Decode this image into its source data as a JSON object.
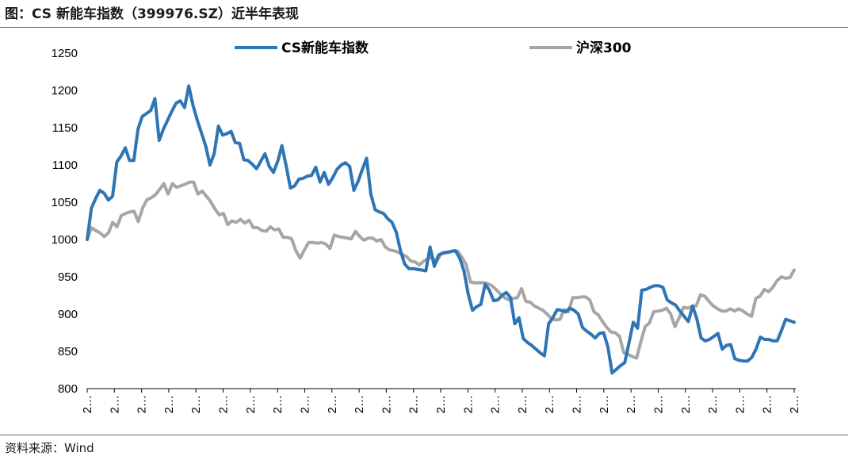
{
  "title": "图：CS 新能车指数（399976.SZ）近半年表现",
  "source": "资料来源：Wind",
  "colors": {
    "series_1": "#2e75b6",
    "series_2": "#a6a6a6",
    "axis": "#000000"
  },
  "chart_data": {
    "type": "line",
    "title": "",
    "xlabel": "",
    "ylabel": "",
    "ylim": [
      800,
      1250
    ],
    "yticks": [
      800,
      850,
      900,
      950,
      1000,
      1050,
      1100,
      1150,
      1200,
      1250
    ],
    "xtick_labels": [
      "2…",
      "2…",
      "2…",
      "2…",
      "2…",
      "2…",
      "2…",
      "2…",
      "2…",
      "2…",
      "2…",
      "2…",
      "2…",
      "2…",
      "2…",
      "2…",
      "2…",
      "2…",
      "2…",
      "2…",
      "2…",
      "2…",
      "2…",
      "2…",
      "2…",
      "2…",
      "2…"
    ],
    "legend": "top",
    "series": [
      {
        "name": "CS新能车指数",
        "values": [
          1000,
          1042,
          1055,
          1066,
          1062,
          1053,
          1058,
          1104,
          1112,
          1123,
          1106,
          1106,
          1148,
          1165,
          1169,
          1173,
          1189,
          1133,
          1148,
          1160,
          1172,
          1183,
          1186,
          1177,
          1206,
          1180,
          1160,
          1143,
          1125,
          1100,
          1115,
          1152,
          1140,
          1142,
          1145,
          1130,
          1129,
          1107,
          1106,
          1101,
          1095,
          1105,
          1115,
          1098,
          1090,
          1105,
          1126,
          1099,
          1069,
          1072,
          1081,
          1082,
          1085,
          1086,
          1097,
          1077,
          1090,
          1074,
          1083,
          1094,
          1100,
          1103,
          1098,
          1066,
          1078,
          1094,
          1109,
          1061,
          1040,
          1037,
          1035,
          1028,
          1023,
          1010,
          985,
          967,
          961,
          961,
          960,
          959,
          958,
          990,
          964,
          979,
          982,
          983,
          984,
          985,
          975,
          958,
          927,
          905,
          910,
          913,
          940,
          932,
          918,
          919,
          925,
          929,
          922,
          887,
          895,
          867,
          862,
          858,
          853,
          848,
          844,
          887,
          895,
          906,
          905,
          903,
          908,
          905,
          900,
          882,
          877,
          873,
          868,
          874,
          875,
          856,
          821,
          826,
          831,
          835,
          862,
          889,
          881,
          932,
          933,
          936,
          938,
          938,
          936,
          919,
          915,
          912,
          904,
          897,
          890,
          911,
          894,
          868,
          864,
          866,
          870,
          874,
          853,
          858,
          859,
          840,
          838,
          837,
          837,
          842,
          853,
          869,
          866,
          866,
          864,
          864,
          878,
          893,
          891,
          889
        ]
      },
      {
        "name": "沪深300",
        "values": [
          1000,
          1016,
          1012,
          1009,
          1004,
          1009,
          1023,
          1017,
          1032,
          1035,
          1037,
          1038,
          1024,
          1042,
          1053,
          1056,
          1060,
          1067,
          1075,
          1061,
          1075,
          1070,
          1072,
          1074,
          1077,
          1077,
          1061,
          1065,
          1058,
          1051,
          1041,
          1033,
          1035,
          1020,
          1025,
          1023,
          1027,
          1022,
          1026,
          1016,
          1016,
          1012,
          1011,
          1017,
          1013,
          1014,
          1003,
          1003,
          1001,
          985,
          975,
          986,
          996,
          996,
          995,
          996,
          994,
          988,
          1006,
          1004,
          1003,
          1002,
          1001,
          1011,
          1004,
          999,
          1002,
          1002,
          998,
          1000,
          990,
          986,
          985,
          983,
          980,
          977,
          971,
          970,
          966,
          971,
          974,
          976,
          970,
          980,
          982,
          983,
          985,
          984,
          976,
          966,
          943,
          942,
          942,
          942,
          941,
          938,
          933,
          927,
          922,
          919,
          921,
          922,
          934,
          917,
          916,
          911,
          908,
          905,
          900,
          894,
          892,
          893,
          906,
          903,
          922,
          922,
          923,
          923,
          919,
          903,
          899,
          890,
          882,
          876,
          875,
          870,
          848,
          846,
          843,
          841,
          863,
          883,
          888,
          903,
          904,
          905,
          908,
          900,
          883,
          895,
          909,
          908,
          910,
          911,
          926,
          924,
          917,
          911,
          907,
          904,
          904,
          907,
          904,
          907,
          904,
          900,
          897,
          921,
          924,
          933,
          930,
          936,
          945,
          950,
          948,
          949,
          959
        ]
      }
    ]
  }
}
